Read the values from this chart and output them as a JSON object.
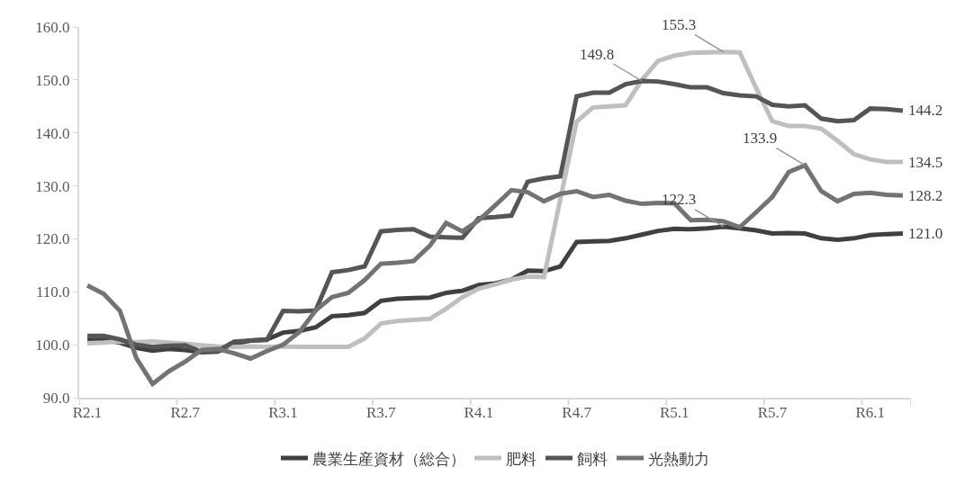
{
  "chart_data": {
    "type": "line",
    "categories": [
      "R2.1",
      null,
      null,
      null,
      null,
      null,
      "R2.7",
      null,
      null,
      null,
      null,
      null,
      "R3.1",
      null,
      null,
      null,
      null,
      null,
      "R3.7",
      null,
      null,
      null,
      null,
      null,
      "R4.1",
      null,
      null,
      null,
      null,
      null,
      "R4.7",
      null,
      null,
      null,
      null,
      null,
      "R5.1",
      null,
      null,
      null,
      null,
      null,
      "R5.7",
      null,
      null,
      null,
      null,
      null,
      "R6.1",
      null,
      null
    ],
    "series": [
      {
        "name": "農業生産資材（総合）",
        "color": "#404040",
        "values": [
          100.9,
          100.9,
          100.4,
          99.4,
          98.9,
          99.2,
          99.0,
          98.6,
          98.7,
          100.2,
          100.8,
          101.0,
          102.3,
          102.6,
          103.3,
          105.4,
          105.6,
          106.0,
          108.3,
          108.7,
          108.8,
          108.9,
          109.8,
          110.2,
          111.3,
          111.6,
          112.3,
          114.0,
          113.9,
          114.8,
          119.4,
          119.5,
          119.6,
          120.1,
          120.8,
          121.5,
          121.9,
          121.8,
          122.0,
          122.3,
          122.0,
          121.6,
          121.0,
          121.1,
          121.0,
          120.1,
          119.8,
          120.1,
          120.7,
          120.9,
          121.0
        ],
        "value_labels": [
          null,
          null,
          null,
          null,
          null,
          null,
          null,
          null,
          null,
          null,
          null,
          null,
          null,
          null,
          null,
          null,
          null,
          null,
          null,
          null,
          null,
          null,
          null,
          null,
          null,
          null,
          null,
          null,
          null,
          null,
          null,
          null,
          null,
          null,
          null,
          null,
          null,
          null,
          null,
          "122.3",
          null,
          null,
          null,
          null,
          null,
          null,
          null,
          null,
          null,
          null,
          "121.0"
        ]
      },
      {
        "name": "肥料",
        "color": "#bfbfbf",
        "values": [
          100.3,
          100.4,
          100.6,
          100.5,
          100.6,
          100.4,
          100.2,
          99.9,
          99.7,
          99.6,
          99.7,
          99.6,
          99.7,
          99.6,
          99.6,
          99.6,
          99.6,
          101.2,
          104.0,
          104.5,
          104.7,
          104.9,
          106.8,
          109.0,
          110.6,
          111.4,
          112.3,
          112.9,
          112.8,
          127.5,
          142.1,
          144.8,
          145.0,
          145.2,
          150.0,
          153.6,
          154.6,
          155.1,
          155.2,
          155.3,
          155.2,
          148.5,
          142.2,
          141.3,
          141.3,
          140.8,
          138.5,
          136.0,
          135.0,
          134.5,
          134.5
        ],
        "value_labels": [
          null,
          null,
          null,
          null,
          null,
          null,
          null,
          null,
          null,
          null,
          null,
          null,
          null,
          null,
          null,
          null,
          null,
          null,
          null,
          null,
          null,
          null,
          null,
          null,
          null,
          null,
          null,
          null,
          null,
          null,
          null,
          null,
          null,
          null,
          null,
          null,
          null,
          null,
          null,
          "155.3",
          null,
          null,
          null,
          null,
          null,
          null,
          null,
          null,
          null,
          null,
          "134.5"
        ]
      },
      {
        "name": "飼料",
        "color": "#555555",
        "values": [
          101.7,
          101.7,
          101.0,
          100.0,
          99.6,
          99.8,
          99.9,
          98.7,
          98.8,
          100.6,
          100.8,
          100.9,
          106.4,
          106.3,
          106.5,
          113.7,
          114.1,
          114.8,
          121.4,
          121.7,
          121.8,
          120.4,
          120.3,
          120.2,
          123.9,
          124.1,
          124.4,
          130.8,
          131.4,
          131.8,
          146.9,
          147.6,
          147.6,
          149.2,
          149.8,
          149.7,
          149.2,
          148.6,
          148.6,
          147.5,
          147.1,
          146.9,
          145.3,
          145.0,
          145.2,
          142.7,
          142.2,
          142.4,
          144.6,
          144.5,
          144.2
        ],
        "value_labels": [
          null,
          null,
          null,
          null,
          null,
          null,
          null,
          null,
          null,
          null,
          null,
          null,
          null,
          null,
          null,
          null,
          null,
          null,
          null,
          null,
          null,
          null,
          null,
          null,
          null,
          null,
          null,
          null,
          null,
          null,
          null,
          null,
          null,
          null,
          "149.8",
          null,
          null,
          null,
          null,
          null,
          null,
          null,
          null,
          null,
          null,
          null,
          null,
          null,
          null,
          null,
          "144.2"
        ]
      },
      {
        "name": "光熱動力",
        "color": "#737373",
        "values": [
          111.2,
          109.6,
          106.4,
          97.5,
          92.6,
          95.0,
          96.8,
          99.0,
          99.2,
          98.4,
          97.4,
          98.8,
          100.0,
          102.4,
          106.5,
          109.0,
          109.8,
          112.2,
          115.3,
          115.5,
          115.8,
          118.7,
          123.0,
          121.4,
          123.5,
          126.3,
          129.2,
          128.8,
          127.1,
          128.5,
          129.0,
          127.9,
          128.3,
          127.2,
          126.6,
          126.8,
          126.7,
          123.5,
          123.6,
          123.3,
          122.2,
          125.0,
          127.9,
          132.6,
          133.9,
          129.0,
          127.1,
          128.5,
          128.7,
          128.3,
          128.2
        ],
        "value_labels": [
          null,
          null,
          null,
          null,
          null,
          null,
          null,
          null,
          null,
          null,
          null,
          null,
          null,
          null,
          null,
          null,
          null,
          null,
          null,
          null,
          null,
          null,
          null,
          null,
          null,
          null,
          null,
          null,
          null,
          null,
          null,
          null,
          null,
          null,
          null,
          null,
          null,
          null,
          null,
          null,
          null,
          null,
          null,
          null,
          "133.9",
          null,
          null,
          null,
          null,
          null,
          "128.2"
        ]
      }
    ],
    "ylim": [
      90,
      160
    ],
    "yticks": [
      {
        "value": 90,
        "label": "90.0"
      },
      {
        "value": 100,
        "label": "100.0"
      },
      {
        "value": 110,
        "label": "110.0"
      },
      {
        "value": 120,
        "label": "120.0"
      },
      {
        "value": 130,
        "label": "130.0"
      },
      {
        "value": 140,
        "label": "140.0"
      },
      {
        "value": 150,
        "label": "150.0"
      },
      {
        "value": 160,
        "label": "160.0"
      }
    ],
    "grid": false,
    "legend": "bottom",
    "marker": "none",
    "line_style": "solid"
  }
}
